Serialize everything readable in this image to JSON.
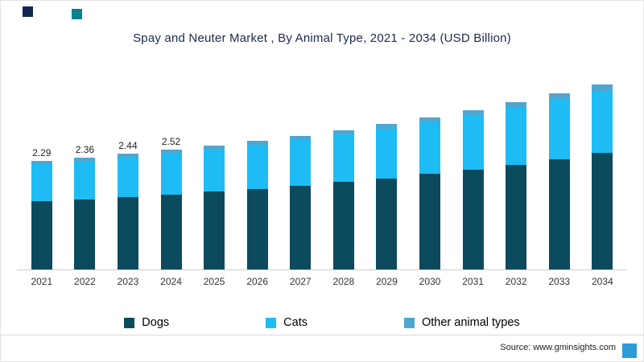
{
  "title": "Spay and Neuter Market , By Animal Type, 2021 - 2034 (USD Billion)",
  "source": "Source: www.gminsights.com",
  "colors": {
    "dogs": "#0c4a5e",
    "cats": "#1ebcf4",
    "other": "#4fa6d0",
    "decor_dark": "#10294d",
    "decor_teal": "#0e7f8e",
    "decor_bottom": "#2d9bd6"
  },
  "legend": [
    {
      "label": "Dogs",
      "color": "#0c4a5e"
    },
    {
      "label": "Cats",
      "color": "#1ebcf4"
    },
    {
      "label": "Other animal types",
      "color": "#4fa6d0"
    }
  ],
  "chart_data": {
    "type": "bar",
    "stacked": true,
    "title": "Spay and Neuter Market , By Animal Type, 2021 - 2034 (USD Billion)",
    "xlabel": "",
    "ylabel": "USD Billion",
    "ylim": [
      0,
      4
    ],
    "grid": false,
    "legend_position": "bottom",
    "categories": [
      "2021",
      "2022",
      "2023",
      "2024",
      "2025",
      "2026",
      "2027",
      "2028",
      "2029",
      "2030",
      "2031",
      "2032",
      "2033",
      "2034"
    ],
    "series": [
      {
        "name": "Dogs",
        "values": [
          1.44,
          1.48,
          1.53,
          1.58,
          1.64,
          1.7,
          1.77,
          1.84,
          1.92,
          2.01,
          2.11,
          2.21,
          2.33,
          2.45
        ]
      },
      {
        "name": "Cats",
        "values": [
          0.78,
          0.8,
          0.83,
          0.86,
          0.89,
          0.92,
          0.96,
          1.0,
          1.05,
          1.1,
          1.14,
          1.2,
          1.26,
          1.32
        ]
      },
      {
        "name": "Other animal types",
        "values": [
          0.07,
          0.08,
          0.08,
          0.08,
          0.08,
          0.09,
          0.09,
          0.1,
          0.1,
          0.1,
          0.11,
          0.12,
          0.12,
          0.13
        ]
      }
    ],
    "totals": [
      2.29,
      2.36,
      2.44,
      2.52,
      2.61,
      2.71,
      2.82,
      2.94,
      3.07,
      3.21,
      3.36,
      3.53,
      3.71,
      3.9
    ],
    "bar_labels": [
      "2.29",
      "2.36",
      "2.44",
      "2.52",
      "",
      "",
      "",
      "",
      "",
      "",
      "",
      "",
      "",
      ""
    ]
  }
}
